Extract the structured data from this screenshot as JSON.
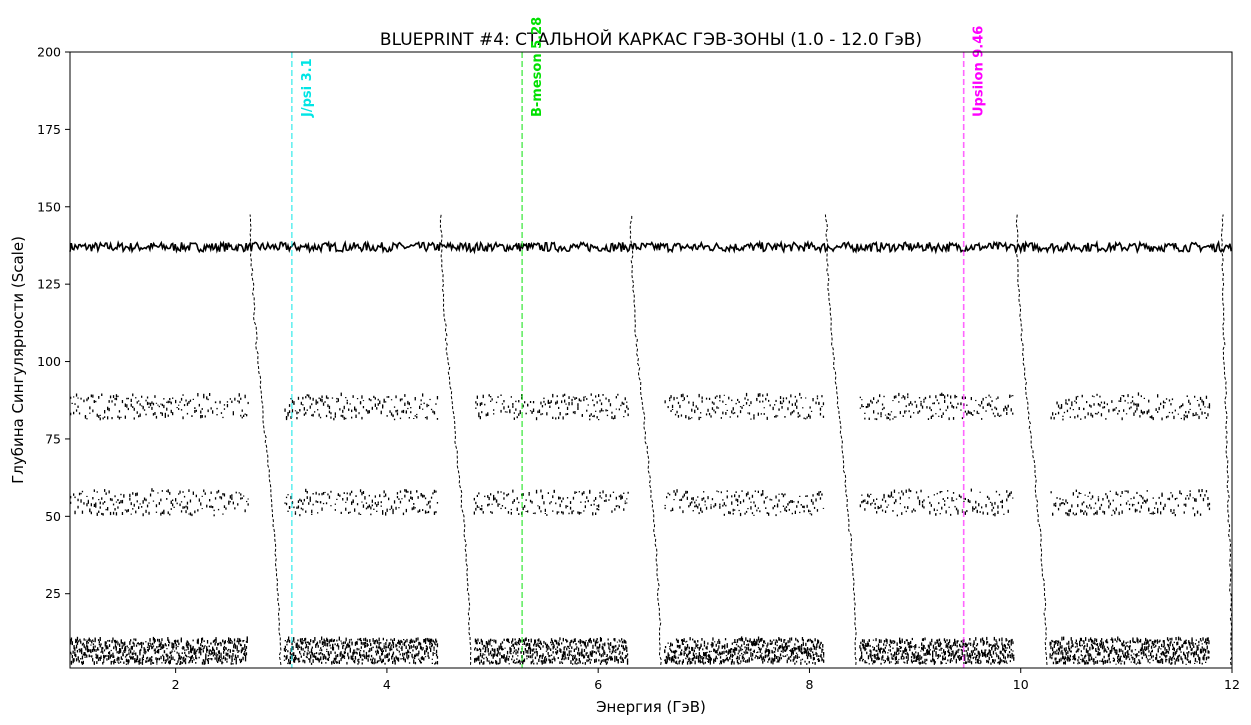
{
  "chart_data": {
    "type": "heatmap",
    "title": "BLUEPRINT #4: СТАЛЬНОЙ КАРКАС ГЭВ-ЗОНЫ (1.0 - 12.0 ГэВ)",
    "xlabel": "Энергия (ГэВ)",
    "ylabel": "Глубина Сингулярности (Scale)",
    "xlim": [
      1.0,
      12.0
    ],
    "ylim": [
      1,
      200
    ],
    "x_ticks": [
      2,
      4,
      6,
      8,
      10,
      12
    ],
    "y_ticks": [
      25,
      50,
      75,
      100,
      125,
      150,
      175,
      200
    ],
    "grid": false,
    "colormap": "binary",
    "ridge_bands": [
      {
        "center": 137,
        "amplitude": 1.5
      },
      {
        "center": 85,
        "amplitude": 4
      },
      {
        "center": 54,
        "amplitude": 4
      },
      {
        "center": 6,
        "amplitude": 4
      }
    ],
    "resonance_columns": [
      2.85,
      4.65,
      6.45,
      8.3,
      10.1,
      11.95
    ],
    "markers": [
      {
        "x": 3.1,
        "label": "J/psi 3.1",
        "color": "#00e5e5"
      },
      {
        "x": 5.28,
        "label": "B-meson 5.28",
        "color": "#00e000"
      },
      {
        "x": 9.46,
        "label": "Upsilon 9.46",
        "color": "#ff00ff"
      }
    ]
  }
}
